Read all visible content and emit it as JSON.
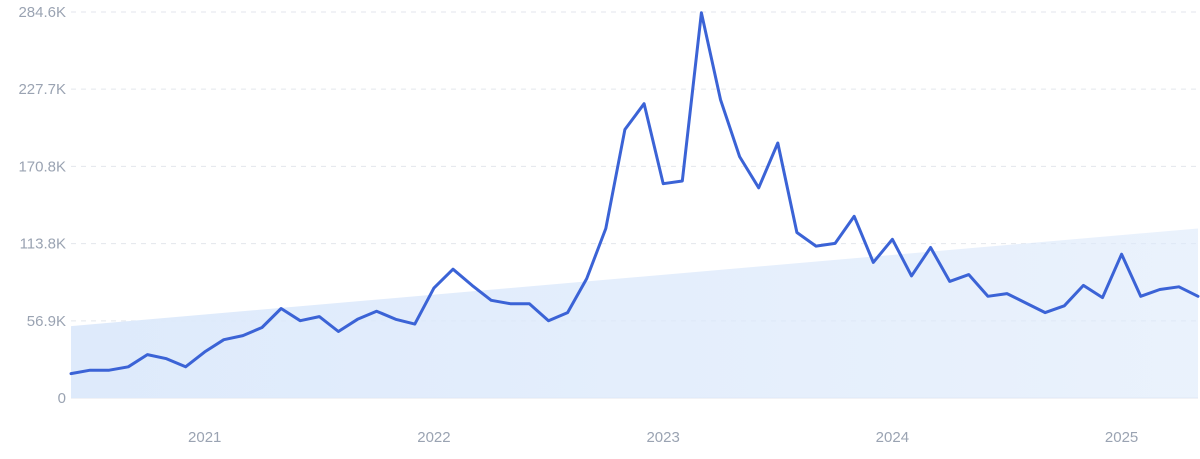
{
  "chart_data": {
    "type": "line",
    "title": "",
    "xlabel": "",
    "ylabel": "",
    "grid": true,
    "ylim": [
      0,
      284600
    ],
    "y_ticks": [
      {
        "value": 0,
        "label": "0"
      },
      {
        "value": 56900,
        "label": "56.9K"
      },
      {
        "value": 113800,
        "label": "113.8K"
      },
      {
        "value": 170800,
        "label": "170.8K"
      },
      {
        "value": 227700,
        "label": "227.7K"
      },
      {
        "value": 284600,
        "label": "284.6K"
      }
    ],
    "xlim": [
      "2020-06",
      "2025-05"
    ],
    "x_ticks": [
      {
        "value": "2021-01",
        "label": "2021"
      },
      {
        "value": "2022-01",
        "label": "2022"
      },
      {
        "value": "2023-01",
        "label": "2023"
      },
      {
        "value": "2024-01",
        "label": "2024"
      },
      {
        "value": "2025-01",
        "label": "2025"
      }
    ],
    "trend": {
      "type": "area",
      "start": {
        "x": "2020-06",
        "y": 53000
      },
      "end": {
        "x": "2025-05",
        "y": 125000
      },
      "color": "#dce9fb"
    },
    "series": [
      {
        "color": "#3b63d6",
        "x": [
          "2020-06",
          "2020-07",
          "2020-08",
          "2020-09",
          "2020-10",
          "2020-11",
          "2020-12",
          "2021-01",
          "2021-02",
          "2021-03",
          "2021-04",
          "2021-05",
          "2021-06",
          "2021-07",
          "2021-08",
          "2021-09",
          "2021-10",
          "2021-11",
          "2021-12",
          "2022-01",
          "2022-02",
          "2022-03",
          "2022-04",
          "2022-05",
          "2022-06",
          "2022-07",
          "2022-08",
          "2022-09",
          "2022-10",
          "2022-11",
          "2022-12",
          "2023-01",
          "2023-02",
          "2023-03",
          "2023-04",
          "2023-05",
          "2023-06",
          "2023-07",
          "2023-08",
          "2023-09",
          "2023-10",
          "2023-11",
          "2023-12",
          "2024-01",
          "2024-02",
          "2024-03",
          "2024-04",
          "2024-05",
          "2024-06",
          "2024-07",
          "2024-08",
          "2024-09",
          "2024-10",
          "2024-11",
          "2024-12",
          "2025-01",
          "2025-02",
          "2025-03",
          "2025-04",
          "2025-05"
        ],
        "values": [
          18000,
          20500,
          20500,
          23000,
          32000,
          29000,
          23000,
          34000,
          43000,
          46000,
          52000,
          66000,
          57000,
          60000,
          49000,
          58000,
          64000,
          58000,
          54500,
          81000,
          95000,
          83000,
          72000,
          69500,
          69500,
          57000,
          63000,
          88000,
          125000,
          198000,
          217000,
          158000,
          160000,
          284000,
          220000,
          178000,
          155000,
          188000,
          122000,
          112000,
          114000,
          134000,
          100000,
          117000,
          90000,
          111000,
          86000,
          91000,
          75000,
          77000,
          70000,
          63000,
          68000,
          83000,
          74000,
          106000,
          75000,
          80000,
          82000,
          75000
        ]
      }
    ]
  }
}
